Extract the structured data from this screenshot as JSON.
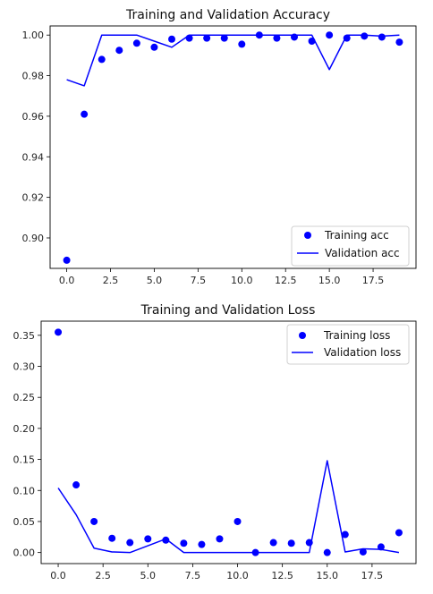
{
  "chart_data": [
    {
      "type": "scatter+line",
      "title": "Training and Validation Accuracy",
      "x": [
        0,
        1,
        2,
        3,
        4,
        5,
        6,
        7,
        8,
        9,
        10,
        11,
        12,
        13,
        14,
        15,
        16,
        17,
        18,
        19
      ],
      "xlim": [
        -0.95,
        19.95
      ],
      "ylim": [
        0.885,
        1.0045
      ],
      "x_ticks": [
        0.0,
        2.5,
        5.0,
        7.5,
        10.0,
        12.5,
        15.0,
        17.5
      ],
      "x_tick_labels": [
        "0.0",
        "2.5",
        "5.0",
        "7.5",
        "10.0",
        "12.5",
        "15.0",
        "17.5"
      ],
      "y_ticks": [
        0.9,
        0.92,
        0.94,
        0.96,
        0.98,
        1.0
      ],
      "y_tick_labels": [
        "0.90",
        "0.92",
        "0.94",
        "0.96",
        "0.98",
        "1.00"
      ],
      "grid": false,
      "legend_position": "lower-right",
      "series": [
        {
          "name": "Training acc",
          "style": "dots",
          "color": "#0000ff",
          "values": [
            0.889,
            0.961,
            0.988,
            0.9925,
            0.996,
            0.994,
            0.998,
            0.9985,
            0.9985,
            0.9985,
            0.9955,
            1.0,
            0.9985,
            0.999,
            0.997,
            1.0,
            0.9985,
            0.9995,
            0.999,
            0.9965
          ]
        },
        {
          "name": "Validation acc",
          "style": "line",
          "color": "#0000ff",
          "values": [
            0.978,
            0.975,
            1.0,
            1.0,
            1.0,
            0.997,
            0.994,
            1.0,
            1.0,
            1.0,
            1.0,
            1.0,
            1.0,
            1.0,
            1.0,
            0.983,
            1.0,
            1.0,
            0.9995,
            1.0
          ]
        }
      ]
    },
    {
      "type": "scatter+line",
      "title": "Training and Validation Loss",
      "x": [
        0,
        1,
        2,
        3,
        4,
        5,
        6,
        7,
        8,
        9,
        10,
        11,
        12,
        13,
        14,
        15,
        16,
        17,
        18,
        19
      ],
      "xlim": [
        -0.95,
        19.95
      ],
      "ylim": [
        -0.0178,
        0.3728
      ],
      "x_ticks": [
        0.0,
        2.5,
        5.0,
        7.5,
        10.0,
        12.5,
        15.0,
        17.5
      ],
      "x_tick_labels": [
        "0.0",
        "2.5",
        "5.0",
        "7.5",
        "10.0",
        "12.5",
        "15.0",
        "17.5"
      ],
      "y_ticks": [
        0.0,
        0.05,
        0.1,
        0.15,
        0.2,
        0.25,
        0.3,
        0.35
      ],
      "y_tick_labels": [
        "0.00",
        "0.05",
        "0.10",
        "0.15",
        "0.20",
        "0.25",
        "0.30",
        "0.35"
      ],
      "grid": false,
      "legend_position": "upper-right",
      "series": [
        {
          "name": "Training loss",
          "style": "dots",
          "color": "#0000ff",
          "values": [
            0.355,
            0.109,
            0.05,
            0.023,
            0.016,
            0.022,
            0.02,
            0.015,
            0.013,
            0.022,
            0.05,
            0.0,
            0.016,
            0.015,
            0.016,
            0.0,
            0.029,
            0.001,
            0.009,
            0.032
          ]
        },
        {
          "name": "Validation loss",
          "style": "line",
          "color": "#0000ff",
          "values": [
            0.104,
            0.061,
            0.007,
            0.001,
            0.0,
            0.011,
            0.022,
            0.0,
            0.0,
            0.0,
            0.0,
            0.0,
            0.0,
            0.0,
            0.0,
            0.148,
            0.001,
            0.006,
            0.005,
            0.0
          ]
        }
      ]
    }
  ]
}
